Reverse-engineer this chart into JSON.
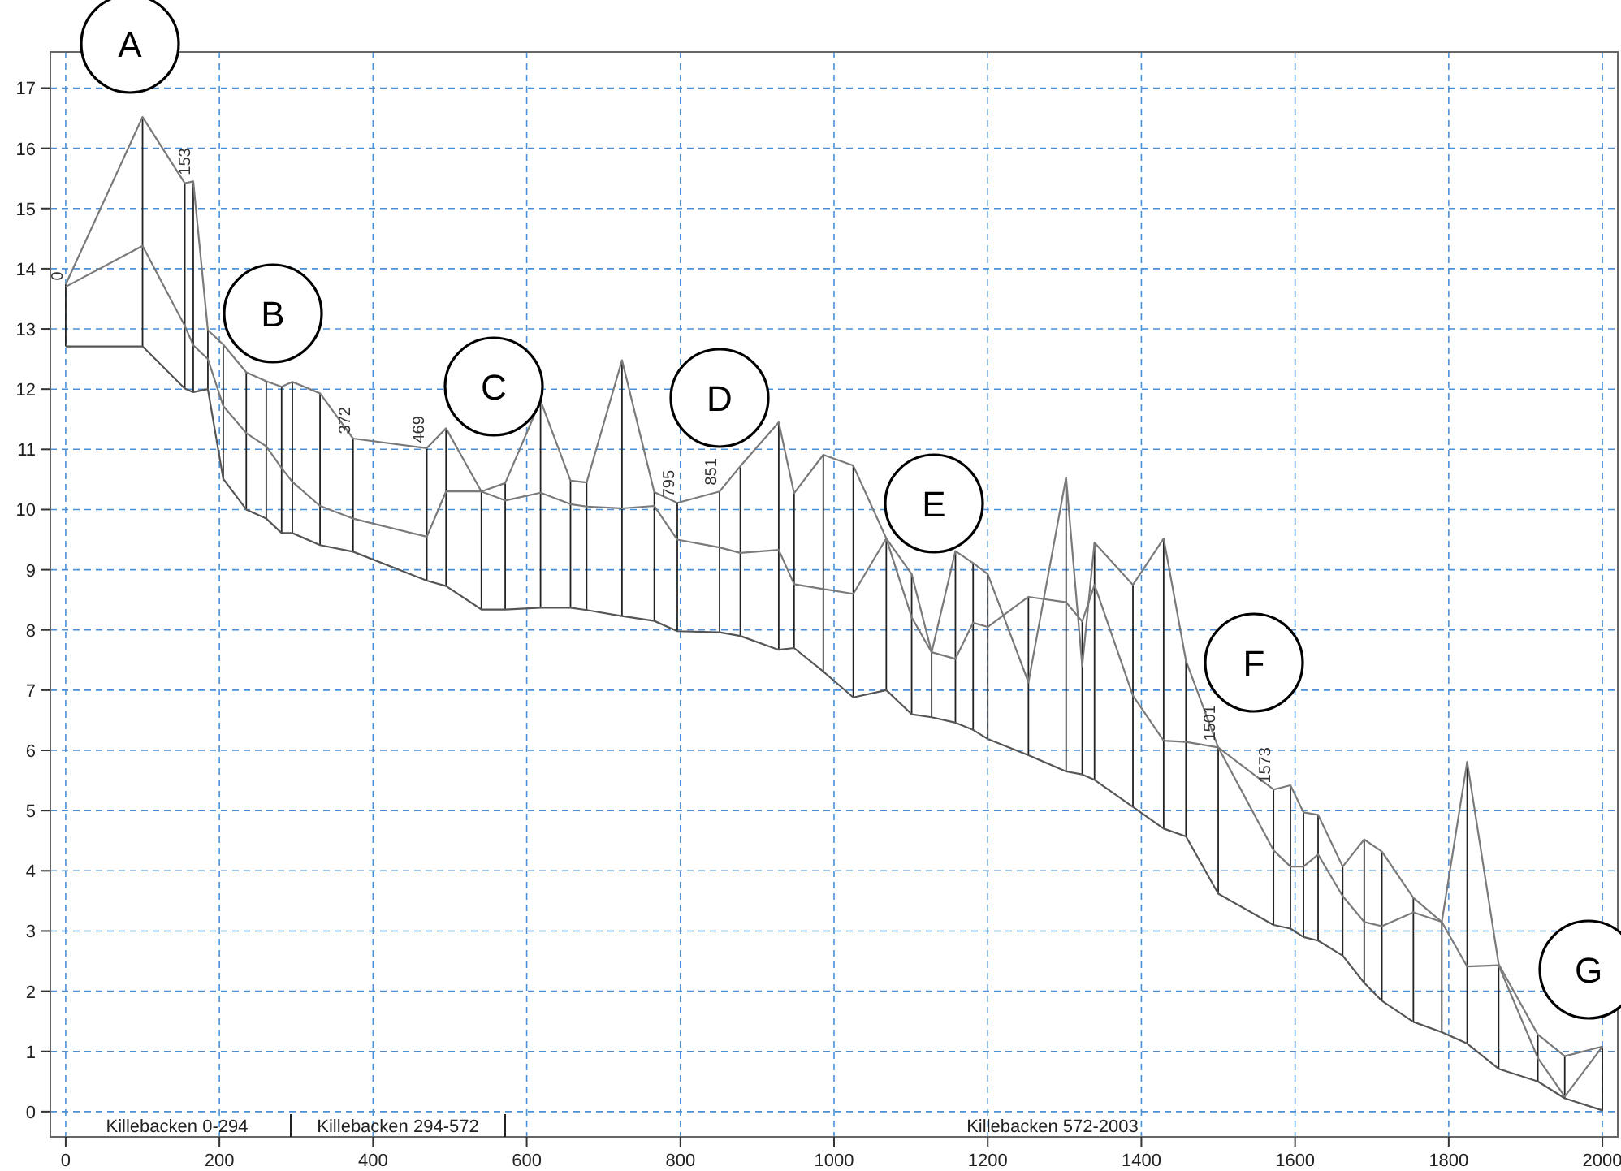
{
  "chart_data": {
    "type": "line",
    "x": [
      0,
      100,
      155,
      166,
      185,
      205,
      235,
      261,
      281,
      295,
      331,
      374,
      470,
      495,
      541,
      572,
      618,
      657,
      678,
      724,
      766,
      796,
      851,
      878,
      928,
      948,
      986,
      1025,
      1068,
      1101,
      1127,
      1158,
      1181,
      1200,
      1253,
      1302,
      1323,
      1339,
      1389,
      1429,
      1458,
      1500,
      1572,
      1594,
      1611,
      1630,
      1662,
      1690,
      1713,
      1754,
      1791,
      1824,
      1865,
      1916,
      1951,
      2000
    ],
    "series": [
      {
        "color": "#7a7a7a",
        "values": [
          13.74,
          16.52,
          15.42,
          15.45,
          12.98,
          12.74,
          12.28,
          12.13,
          12.04,
          12.12,
          11.93,
          11.18,
          11.02,
          11.35,
          10.3,
          10.44,
          11.81,
          10.48,
          10.45,
          12.48,
          10.29,
          10.11,
          10.3,
          10.72,
          11.45,
          10.27,
          10.91,
          10.73,
          9.52,
          8.93,
          7.63,
          9.31,
          9.11,
          8.93,
          7.13,
          10.53,
          7.4,
          9.45,
          8.75,
          9.52,
          7.49,
          6.05,
          5.35,
          5.42,
          4.97,
          4.93,
          4.07,
          4.52,
          4.32,
          3.55,
          3.15,
          5.81,
          2.45,
          1.28,
          0.92,
          1.08
        ]
      },
      {
        "color": "#7a7a7a",
        "values": [
          13.7,
          14.38,
          13.05,
          12.73,
          12.5,
          11.72,
          11.27,
          11.05,
          10.69,
          10.46,
          10.06,
          9.85,
          9.55,
          10.3,
          10.3,
          10.15,
          10.28,
          10.09,
          10.05,
          10.02,
          10.06,
          9.5,
          9.37,
          9.28,
          9.33,
          8.76,
          8.68,
          8.6,
          9.52,
          8.21,
          7.63,
          7.52,
          8.12,
          8.05,
          8.55,
          8.46,
          8.14,
          8.75,
          6.91,
          6.16,
          6.14,
          6.05,
          4.34,
          4.07,
          4.07,
          4.27,
          3.58,
          3.15,
          3.08,
          3.31,
          3.15,
          2.41,
          2.43,
          0.89,
          0.25,
          1.08
        ]
      },
      {
        "color": "#555555",
        "values": [
          12.71,
          12.71,
          12.01,
          11.95,
          12.0,
          10.51,
          10.0,
          9.85,
          9.61,
          9.61,
          9.41,
          9.3,
          8.82,
          8.73,
          8.34,
          8.34,
          8.37,
          8.37,
          8.33,
          8.23,
          8.15,
          7.98,
          7.96,
          7.9,
          7.67,
          7.7,
          7.31,
          6.88,
          7.0,
          6.6,
          6.55,
          6.46,
          6.34,
          6.19,
          5.92,
          5.65,
          5.6,
          5.51,
          5.06,
          4.7,
          4.57,
          3.62,
          3.1,
          3.04,
          2.9,
          2.84,
          2.59,
          2.14,
          1.84,
          1.49,
          1.32,
          1.13,
          0.71,
          0.5,
          0.22,
          0.02
        ],
        "errors": [
          [
            12.71,
            13.74
          ],
          [
            12.71,
            16.52
          ],
          [
            12.01,
            15.42
          ],
          [
            11.95,
            15.45
          ],
          [
            12.0,
            12.98
          ],
          [
            10.51,
            12.74
          ],
          [
            10.0,
            12.28
          ],
          [
            9.85,
            12.13
          ],
          [
            9.61,
            12.04
          ],
          [
            9.61,
            12.12
          ],
          [
            9.41,
            11.93
          ],
          [
            9.3,
            11.18
          ],
          [
            8.82,
            11.02
          ],
          [
            8.73,
            11.35
          ],
          [
            8.34,
            10.3
          ],
          [
            8.34,
            10.44
          ],
          [
            8.37,
            11.81
          ],
          [
            8.37,
            10.48
          ],
          [
            8.33,
            10.45
          ],
          [
            8.23,
            12.48
          ],
          [
            8.15,
            10.29
          ],
          [
            7.98,
            10.11
          ],
          [
            7.96,
            10.3
          ],
          [
            7.9,
            10.72
          ],
          [
            7.67,
            11.45
          ],
          [
            7.7,
            10.27
          ],
          [
            7.31,
            10.91
          ],
          [
            6.88,
            10.73
          ],
          [
            7.0,
            9.52
          ],
          [
            6.6,
            8.93
          ],
          [
            6.55,
            7.63
          ],
          [
            6.46,
            9.31
          ],
          [
            6.34,
            9.11
          ],
          [
            6.19,
            8.93
          ],
          [
            5.92,
            8.55
          ],
          [
            5.65,
            10.53
          ],
          [
            5.6,
            8.14
          ],
          [
            5.51,
            9.45
          ],
          [
            5.06,
            8.75
          ],
          [
            4.7,
            9.52
          ],
          [
            4.57,
            7.49
          ],
          [
            3.62,
            6.05
          ],
          [
            3.1,
            5.35
          ],
          [
            3.04,
            5.42
          ],
          [
            2.9,
            4.97
          ],
          [
            2.84,
            4.93
          ],
          [
            2.59,
            4.07
          ],
          [
            2.14,
            4.52
          ],
          [
            1.84,
            4.32
          ],
          [
            1.49,
            3.55
          ],
          [
            1.32,
            3.15
          ],
          [
            1.13,
            5.81
          ],
          [
            0.71,
            2.45
          ],
          [
            0.5,
            1.28
          ],
          [
            0.22,
            0.92
          ],
          [
            0.02,
            1.08
          ]
        ]
      }
    ],
    "xlim": [
      -20,
      2020
    ],
    "ylim": [
      -0.42,
      17.6
    ],
    "xticks": [
      0,
      200,
      400,
      600,
      800,
      1000,
      1200,
      1400,
      1600,
      1800,
      2000
    ],
    "yticks": [
      0,
      1,
      2,
      3,
      4,
      5,
      6,
      7,
      8,
      9,
      10,
      11,
      12,
      13,
      14,
      15,
      16,
      17
    ],
    "grid": true,
    "marker": "none",
    "line_style": "solid",
    "annotations": [
      "A",
      "B",
      "C",
      "D",
      "E",
      "F",
      "G",
      {
        "text": "0",
        "x": 0,
        "y": 13.75
      },
      {
        "text": "153",
        "x": 166,
        "y": 15.5
      },
      {
        "text": "372",
        "x": 374,
        "y": 11.2
      },
      {
        "text": "469",
        "x": 470,
        "y": 11.05
      },
      {
        "text": "795",
        "x": 796,
        "y": 10.15
      },
      {
        "text": "851",
        "x": 851,
        "y": 10.35
      },
      {
        "text": "1501",
        "x": 1500,
        "y": 6.1
      },
      {
        "text": "1573",
        "x": 1572,
        "y": 5.4
      },
      "Killebacken 0-294",
      "Killebacken 294-572",
      "Killebacken 572-2003"
    ]
  }
}
